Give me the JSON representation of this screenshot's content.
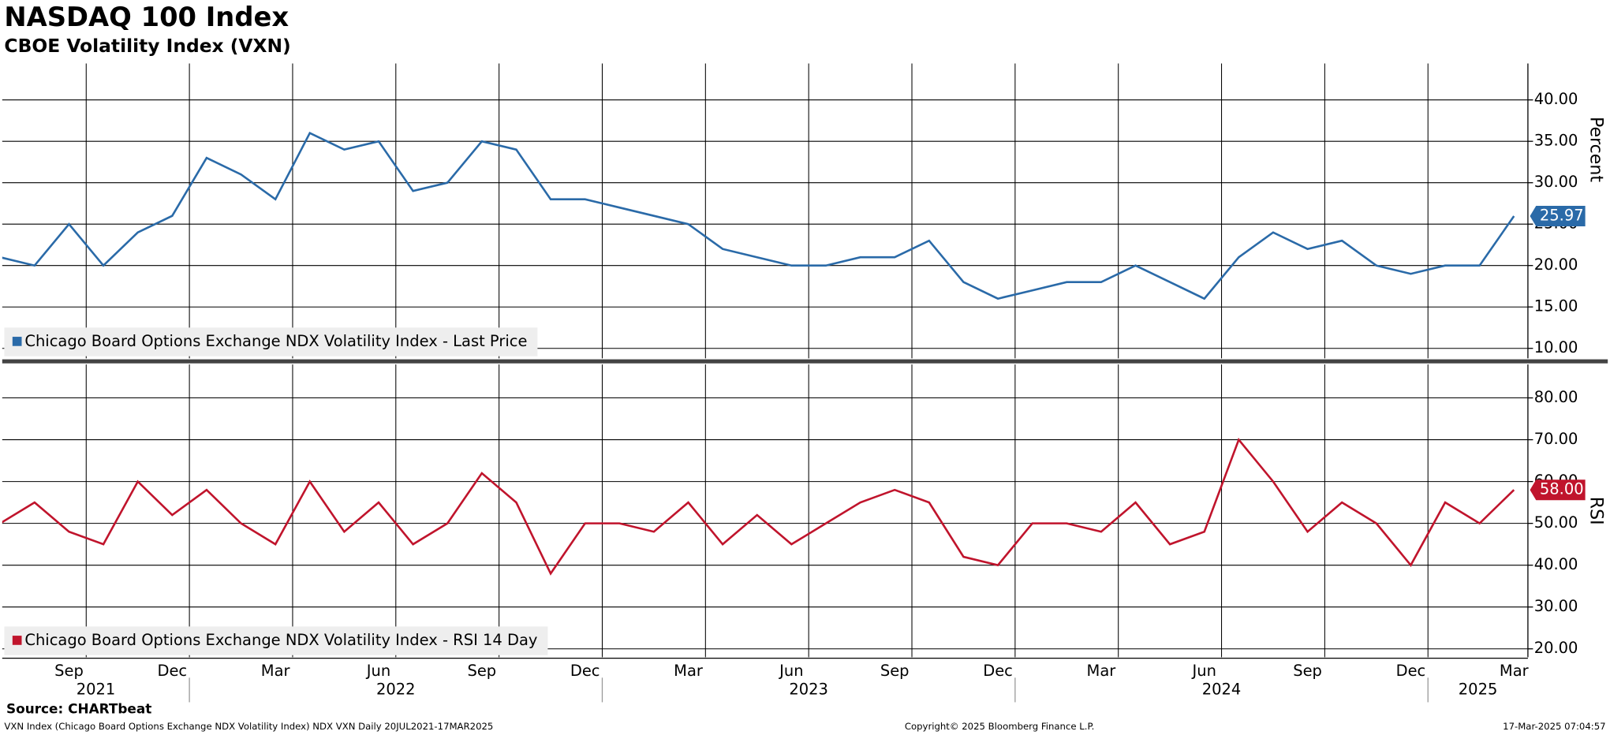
{
  "chart_data": [
    {
      "type": "line",
      "title": "NASDAQ 100 Index",
      "subtitle": "CBOE Volatility Index (VXN)",
      "y_label": "Percent",
      "x": [
        "2021-07",
        "2021-08",
        "2021-09",
        "2021-10",
        "2021-11",
        "2021-12",
        "2022-01",
        "2022-02",
        "2022-03",
        "2022-04",
        "2022-05",
        "2022-06",
        "2022-07",
        "2022-08",
        "2022-09",
        "2022-10",
        "2022-11",
        "2022-12",
        "2023-01",
        "2023-02",
        "2023-03",
        "2023-04",
        "2023-05",
        "2023-06",
        "2023-07",
        "2023-08",
        "2023-09",
        "2023-10",
        "2023-11",
        "2023-12",
        "2024-01",
        "2024-02",
        "2024-03",
        "2024-04",
        "2024-05",
        "2024-06",
        "2024-07",
        "2024-08",
        "2024-09",
        "2024-10",
        "2024-11",
        "2024-12",
        "2025-01",
        "2025-02",
        "2025-03"
      ],
      "series": [
        {
          "name": "Chicago Board Options Exchange NDX Volatility Index - Last Price",
          "color": "#2a6aa8",
          "last_label": "25.97",
          "values": [
            21,
            20,
            25,
            20,
            24,
            26,
            33,
            31,
            28,
            36,
            34,
            35,
            29,
            30,
            35,
            34,
            28,
            28,
            27,
            26,
            25,
            22,
            21,
            20,
            20,
            21,
            21,
            23,
            18,
            16,
            17,
            18,
            18,
            20,
            18,
            16,
            21,
            24,
            22,
            23,
            20,
            19,
            20,
            20,
            25.97
          ]
        }
      ],
      "ylim": [
        8.8,
        44.4
      ],
      "yticks": [
        {
          "value": 10,
          "label": "10.00"
        },
        {
          "value": 15,
          "label": "15.00"
        },
        {
          "value": 20,
          "label": "20.00"
        },
        {
          "value": 25,
          "label": "25.00"
        },
        {
          "value": 30,
          "label": "30.00"
        },
        {
          "value": 35,
          "label": "35.00"
        },
        {
          "value": 40,
          "label": "40.00"
        }
      ],
      "grid": true
    },
    {
      "type": "line",
      "y_label": "RSI",
      "x": [
        "2021-07",
        "2021-08",
        "2021-09",
        "2021-10",
        "2021-11",
        "2021-12",
        "2022-01",
        "2022-02",
        "2022-03",
        "2022-04",
        "2022-05",
        "2022-06",
        "2022-07",
        "2022-08",
        "2022-09",
        "2022-10",
        "2022-11",
        "2022-12",
        "2023-01",
        "2023-02",
        "2023-03",
        "2023-04",
        "2023-05",
        "2023-06",
        "2023-07",
        "2023-08",
        "2023-09",
        "2023-10",
        "2023-11",
        "2023-12",
        "2024-01",
        "2024-02",
        "2024-03",
        "2024-04",
        "2024-05",
        "2024-06",
        "2024-07",
        "2024-08",
        "2024-09",
        "2024-10",
        "2024-11",
        "2024-12",
        "2025-01",
        "2025-02",
        "2025-03"
      ],
      "series": [
        {
          "name": "Chicago Board Options Exchange NDX Volatility Index - RSI 14 Day",
          "color": "#c0142c",
          "last_label": "58.00",
          "values": [
            50,
            55,
            48,
            45,
            60,
            52,
            58,
            50,
            45,
            60,
            48,
            55,
            45,
            50,
            62,
            55,
            38,
            50,
            50,
            48,
            55,
            45,
            52,
            45,
            50,
            55,
            58,
            55,
            42,
            40,
            50,
            50,
            48,
            55,
            45,
            48,
            70,
            60,
            48,
            55,
            50,
            40,
            55,
            50,
            58
          ]
        }
      ],
      "ylim": [
        18,
        88
      ],
      "yticks": [
        {
          "value": 20,
          "label": "20.00"
        },
        {
          "value": 30,
          "label": "30.00"
        },
        {
          "value": 40,
          "label": "40.00"
        },
        {
          "value": 50,
          "label": "50.00"
        },
        {
          "value": 60,
          "label": "60.00"
        },
        {
          "value": 70,
          "label": "70.00"
        },
        {
          "value": 80,
          "label": "80.00"
        }
      ],
      "xticks": [
        {
          "value": "2021-09",
          "label": "Sep"
        },
        {
          "value": "2021-12",
          "label": "Dec"
        },
        {
          "value": "2022-03",
          "label": "Mar"
        },
        {
          "value": "2022-06",
          "label": "Jun"
        },
        {
          "value": "2022-09",
          "label": "Sep"
        },
        {
          "value": "2022-12",
          "label": "Dec"
        },
        {
          "value": "2023-03",
          "label": "Mar"
        },
        {
          "value": "2023-06",
          "label": "Jun"
        },
        {
          "value": "2023-09",
          "label": "Sep"
        },
        {
          "value": "2023-12",
          "label": "Dec"
        },
        {
          "value": "2024-03",
          "label": "Mar"
        },
        {
          "value": "2024-06",
          "label": "Jun"
        },
        {
          "value": "2024-09",
          "label": "Sep"
        },
        {
          "value": "2024-12",
          "label": "Dec"
        },
        {
          "value": "2025-03",
          "label": "Mar"
        }
      ],
      "year_ticks": [
        2021,
        2022,
        2023,
        2024,
        2025
      ],
      "grid": true
    }
  ],
  "footer": {
    "source": "Source: CHARTbeat",
    "description": "VXN Index (Chicago Board Options Exchange NDX Volatility Index) NDX VXN  Daily 20JUL2021-17MAR2025",
    "copyright": "Copyright© 2025 Bloomberg Finance L.P.",
    "timestamp": "17-Mar-2025 07:04:57"
  }
}
